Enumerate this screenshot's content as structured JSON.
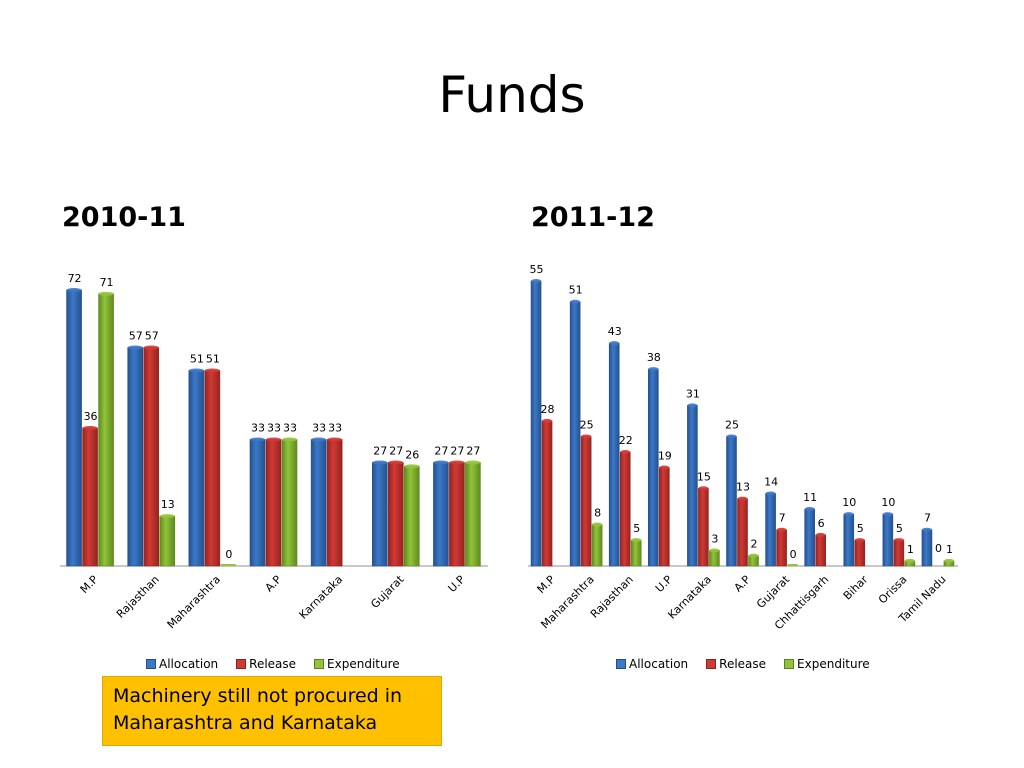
{
  "page": {
    "title": "Funds"
  },
  "legend": {
    "items": [
      {
        "label": "Allocation",
        "color": "#3c78c8"
      },
      {
        "label": "Release",
        "color": "#d03a35"
      },
      {
        "label": "Expenditure",
        "color": "#92c43a"
      }
    ]
  },
  "note": {
    "line1": "Machinery still not procured in",
    "line2": "Maharashtra and Karnataka"
  },
  "chart_data": [
    {
      "type": "bar",
      "title": "2010-11",
      "categories": [
        "M.P",
        "Rajasthan",
        "Maharashtra",
        "A.P",
        "Karnataka",
        "Gujarat",
        "U.P"
      ],
      "series": [
        {
          "name": "Allocation",
          "values": [
            72,
            57,
            51,
            33,
            33,
            27,
            27
          ]
        },
        {
          "name": "Release",
          "values": [
            36,
            57,
            51,
            33,
            33,
            27,
            27
          ]
        },
        {
          "name": "Expenditure",
          "values": [
            71,
            13,
            0,
            33,
            null,
            26,
            27
          ]
        }
      ],
      "xlabel": "",
      "ylabel": "",
      "legend_position": "bottom",
      "grid": false
    },
    {
      "type": "bar",
      "title": "2011-12",
      "categories": [
        "M.P",
        "Maharashtra",
        "Rajasthan",
        "U.P",
        "Karnataka",
        "A.P",
        "Gujarat",
        "Chhattisgarh",
        "Bihar",
        "Orissa",
        "Tamil Nadu"
      ],
      "series": [
        {
          "name": "Allocation",
          "values": [
            55,
            51,
            43,
            38,
            31,
            25,
            14,
            11,
            10,
            10,
            7
          ]
        },
        {
          "name": "Release",
          "values": [
            28,
            25,
            22,
            19,
            15,
            13,
            7,
            6,
            5,
            5,
            null
          ]
        },
        {
          "name": "Expenditure",
          "values": [
            null,
            8,
            5,
            null,
            3,
            2,
            0,
            null,
            null,
            1,
            1
          ]
        }
      ],
      "extra_labels": [
        {
          "category": "Tamil Nadu",
          "series": "Release",
          "text": "0"
        }
      ],
      "xlabel": "",
      "ylabel": "",
      "legend_position": "bottom",
      "grid": false
    }
  ]
}
